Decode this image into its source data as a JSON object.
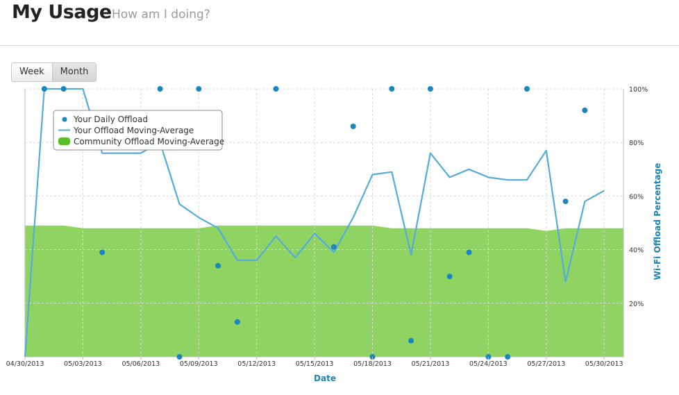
{
  "header": {
    "title": "My Usage",
    "subtitle": "How am I doing?"
  },
  "range_toggle": {
    "week_label": "Week",
    "month_label": "Month",
    "selected": "Month"
  },
  "colors": {
    "dots": "#1a86bd",
    "moving_average": "#55acd9",
    "community_area": "#8fd462",
    "axis_title": "#1c84b5"
  },
  "chart_data": {
    "type": "line",
    "xlabel": "Date",
    "ylabel": "Wi-Fi Offload Percentage",
    "x_range": [
      "2013-04-30",
      "2013-05-31"
    ],
    "ylim": [
      0,
      100
    ],
    "y_ticks": [
      "20%",
      "40%",
      "60%",
      "80%",
      "100%"
    ],
    "x_ticks": [
      "04/30/2013",
      "05/03/2013",
      "05/06/2013",
      "05/09/2013",
      "05/12/2013",
      "05/15/2013",
      "05/18/2013",
      "05/21/2013",
      "05/24/2013",
      "05/27/2013",
      "05/30/2013"
    ],
    "grid": true,
    "legend_position": "top-left",
    "series": [
      {
        "name": "Your Daily Offload",
        "kind": "scatter",
        "points": [
          [
            "2013-05-01",
            100
          ],
          [
            "2013-05-02",
            100
          ],
          [
            "2013-05-04",
            39
          ],
          [
            "2013-05-07",
            100
          ],
          [
            "2013-05-08",
            0
          ],
          [
            "2013-05-09",
            100
          ],
          [
            "2013-05-10",
            34
          ],
          [
            "2013-05-11",
            13
          ],
          [
            "2013-05-13",
            100
          ],
          [
            "2013-05-16",
            41
          ],
          [
            "2013-05-17",
            86
          ],
          [
            "2013-05-18",
            0
          ],
          [
            "2013-05-19",
            100
          ],
          [
            "2013-05-20",
            6
          ],
          [
            "2013-05-21",
            100
          ],
          [
            "2013-05-22",
            30
          ],
          [
            "2013-05-23",
            39
          ],
          [
            "2013-05-24",
            0
          ],
          [
            "2013-05-25",
            0
          ],
          [
            "2013-05-26",
            100
          ],
          [
            "2013-05-28",
            58
          ],
          [
            "2013-05-29",
            92
          ]
        ]
      },
      {
        "name": "Your Offload Moving-Average",
        "kind": "line",
        "points": [
          [
            "2013-04-30",
            0
          ],
          [
            "2013-05-01",
            100
          ],
          [
            "2013-05-02",
            100
          ],
          [
            "2013-05-03",
            100
          ],
          [
            "2013-05-04",
            76
          ],
          [
            "2013-05-05",
            76
          ],
          [
            "2013-05-06",
            76
          ],
          [
            "2013-05-07",
            80
          ],
          [
            "2013-05-08",
            57
          ],
          [
            "2013-05-09",
            52
          ],
          [
            "2013-05-10",
            48
          ],
          [
            "2013-05-11",
            36
          ],
          [
            "2013-05-12",
            36
          ],
          [
            "2013-05-13",
            45
          ],
          [
            "2013-05-14",
            37
          ],
          [
            "2013-05-15",
            46
          ],
          [
            "2013-05-16",
            39
          ],
          [
            "2013-05-17",
            52
          ],
          [
            "2013-05-18",
            68
          ],
          [
            "2013-05-19",
            69
          ],
          [
            "2013-05-20",
            38
          ],
          [
            "2013-05-21",
            76
          ],
          [
            "2013-05-22",
            67
          ],
          [
            "2013-05-23",
            70
          ],
          [
            "2013-05-24",
            67
          ],
          [
            "2013-05-25",
            66
          ],
          [
            "2013-05-26",
            66
          ],
          [
            "2013-05-27",
            77
          ],
          [
            "2013-05-28",
            28
          ],
          [
            "2013-05-29",
            58
          ],
          [
            "2013-05-30",
            62
          ]
        ]
      },
      {
        "name": "Community Offload Moving-Average",
        "kind": "area",
        "points": [
          [
            "2013-04-30",
            49
          ],
          [
            "2013-05-02",
            49
          ],
          [
            "2013-05-03",
            48
          ],
          [
            "2013-05-09",
            48
          ],
          [
            "2013-05-10",
            49
          ],
          [
            "2013-05-18",
            49
          ],
          [
            "2013-05-19",
            48
          ],
          [
            "2013-05-26",
            48
          ],
          [
            "2013-05-27",
            47
          ],
          [
            "2013-05-28",
            48
          ],
          [
            "2013-05-31",
            48
          ]
        ]
      }
    ]
  }
}
